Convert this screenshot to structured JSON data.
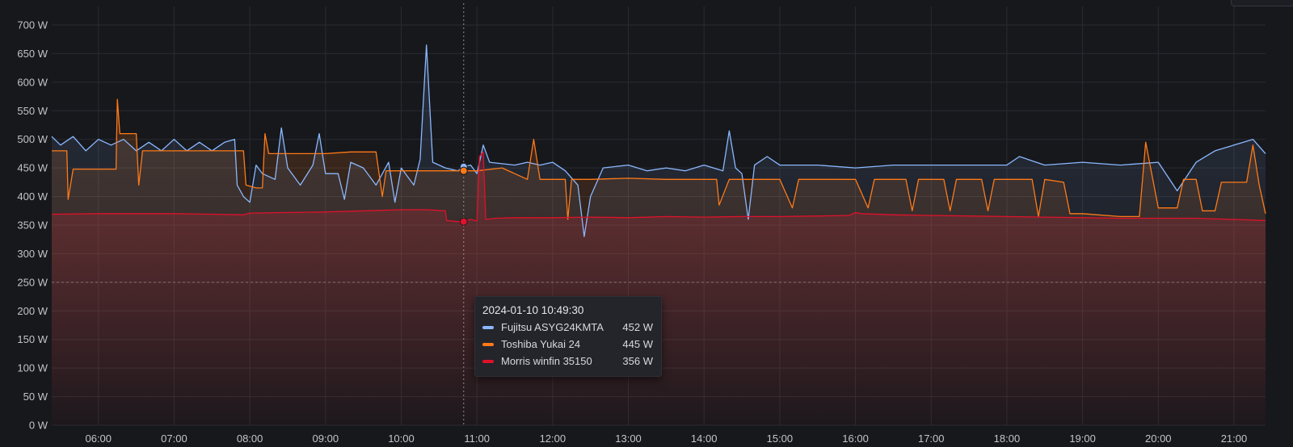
{
  "chart_data": {
    "type": "line",
    "y_unit": "W",
    "ylim": [
      0,
      700
    ],
    "y_ticks": [
      "0 W",
      "50 W",
      "100 W",
      "150 W",
      "200 W",
      "250 W",
      "300 W",
      "350 W",
      "400 W",
      "450 W",
      "500 W",
      "550 W",
      "600 W",
      "650 W",
      "700 W"
    ],
    "x_ticks": [
      "06:00",
      "07:00",
      "08:00",
      "09:00",
      "10:00",
      "11:00",
      "12:00",
      "13:00",
      "14:00",
      "15:00",
      "16:00",
      "17:00",
      "18:00",
      "19:00",
      "20:00",
      "21:00"
    ],
    "xlim": [
      "05:23",
      "21:25"
    ],
    "threshold": 250,
    "cursor_time": "10:49:30",
    "grid": true,
    "series": [
      {
        "name": "Fujitsu ASYG24KMTA",
        "color": "#8ab8ff",
        "style": "spiky",
        "points": [
          [
            "05:23",
            505
          ],
          [
            "05:30",
            490
          ],
          [
            "05:40",
            505
          ],
          [
            "05:50",
            480
          ],
          [
            "06:00",
            500
          ],
          [
            "06:10",
            490
          ],
          [
            "06:20",
            500
          ],
          [
            "06:30",
            480
          ],
          [
            "06:40",
            495
          ],
          [
            "06:50",
            480
          ],
          [
            "07:00",
            500
          ],
          [
            "07:10",
            480
          ],
          [
            "07:20",
            495
          ],
          [
            "07:30",
            480
          ],
          [
            "07:40",
            495
          ],
          [
            "07:48",
            500
          ],
          [
            "07:50",
            420
          ],
          [
            "07:55",
            400
          ],
          [
            "08:00",
            390
          ],
          [
            "08:05",
            455
          ],
          [
            "08:10",
            440
          ],
          [
            "08:20",
            430
          ],
          [
            "08:25",
            520
          ],
          [
            "08:30",
            450
          ],
          [
            "08:40",
            420
          ],
          [
            "08:50",
            455
          ],
          [
            "08:55",
            510
          ],
          [
            "09:00",
            440
          ],
          [
            "09:10",
            440
          ],
          [
            "09:15",
            395
          ],
          [
            "09:20",
            460
          ],
          [
            "09:30",
            450
          ],
          [
            "09:40",
            420
          ],
          [
            "09:50",
            460
          ],
          [
            "09:55",
            390
          ],
          [
            "10:00",
            450
          ],
          [
            "10:10",
            420
          ],
          [
            "10:15",
            465
          ],
          [
            "10:20",
            665
          ],
          [
            "10:25",
            460
          ],
          [
            "10:35",
            450
          ],
          [
            "10:45",
            445
          ],
          [
            "10:49",
            452
          ],
          [
            "10:55",
            455
          ],
          [
            "11:00",
            440
          ],
          [
            "11:05",
            490
          ],
          [
            "11:10",
            460
          ],
          [
            "11:30",
            455
          ],
          [
            "11:40",
            460
          ],
          [
            "11:50",
            455
          ],
          [
            "12:00",
            460
          ],
          [
            "12:10",
            445
          ],
          [
            "12:20",
            420
          ],
          [
            "12:25",
            330
          ],
          [
            "12:30",
            400
          ],
          [
            "12:40",
            450
          ],
          [
            "13:00",
            455
          ],
          [
            "13:15",
            445
          ],
          [
            "13:30",
            450
          ],
          [
            "13:45",
            445
          ],
          [
            "14:00",
            455
          ],
          [
            "14:15",
            445
          ],
          [
            "14:20",
            515
          ],
          [
            "14:25",
            450
          ],
          [
            "14:30",
            440
          ],
          [
            "14:35",
            360
          ],
          [
            "14:40",
            455
          ],
          [
            "14:50",
            470
          ],
          [
            "15:00",
            455
          ],
          [
            "15:30",
            455
          ],
          [
            "16:00",
            450
          ],
          [
            "16:30",
            455
          ],
          [
            "17:00",
            455
          ],
          [
            "17:30",
            455
          ],
          [
            "18:00",
            455
          ],
          [
            "18:10",
            470
          ],
          [
            "18:30",
            455
          ],
          [
            "19:00",
            460
          ],
          [
            "19:30",
            455
          ],
          [
            "20:00",
            460
          ],
          [
            "20:15",
            410
          ],
          [
            "20:30",
            460
          ],
          [
            "20:45",
            480
          ],
          [
            "21:00",
            490
          ],
          [
            "21:15",
            500
          ],
          [
            "21:25",
            475
          ]
        ]
      },
      {
        "name": "Toshiba Yukai 24",
        "color": "#ff7a18",
        "style": "step",
        "points": [
          [
            "05:23",
            480
          ],
          [
            "05:35",
            480
          ],
          [
            "05:36",
            395
          ],
          [
            "05:40",
            448
          ],
          [
            "05:55",
            448
          ],
          [
            "06:10",
            448
          ],
          [
            "06:14",
            448
          ],
          [
            "06:15",
            570
          ],
          [
            "06:17",
            510
          ],
          [
            "06:25",
            510
          ],
          [
            "06:30",
            510
          ],
          [
            "06:32",
            420
          ],
          [
            "06:35",
            480
          ],
          [
            "07:00",
            480
          ],
          [
            "07:30",
            480
          ],
          [
            "07:55",
            480
          ],
          [
            "07:57",
            420
          ],
          [
            "08:05",
            415
          ],
          [
            "08:10",
            415
          ],
          [
            "08:12",
            510
          ],
          [
            "08:15",
            475
          ],
          [
            "08:30",
            475
          ],
          [
            "09:00",
            475
          ],
          [
            "09:20",
            478
          ],
          [
            "09:40",
            478
          ],
          [
            "09:45",
            400
          ],
          [
            "09:48",
            445
          ],
          [
            "10:00",
            445
          ],
          [
            "10:20",
            445
          ],
          [
            "10:40",
            445
          ],
          [
            "10:49",
            445
          ],
          [
            "11:00",
            445
          ],
          [
            "11:20",
            450
          ],
          [
            "11:30",
            440
          ],
          [
            "11:40",
            430
          ],
          [
            "11:45",
            500
          ],
          [
            "11:50",
            430
          ],
          [
            "12:00",
            430
          ],
          [
            "12:10",
            430
          ],
          [
            "12:12",
            360
          ],
          [
            "12:15",
            430
          ],
          [
            "12:30",
            430
          ],
          [
            "13:00",
            432
          ],
          [
            "13:30",
            430
          ],
          [
            "14:00",
            430
          ],
          [
            "14:10",
            430
          ],
          [
            "14:12",
            385
          ],
          [
            "14:20",
            430
          ],
          [
            "14:40",
            430
          ],
          [
            "15:00",
            430
          ],
          [
            "15:10",
            380
          ],
          [
            "15:15",
            430
          ],
          [
            "15:30",
            430
          ],
          [
            "16:00",
            430
          ],
          [
            "16:10",
            380
          ],
          [
            "16:15",
            430
          ],
          [
            "16:40",
            430
          ],
          [
            "16:45",
            375
          ],
          [
            "16:50",
            430
          ],
          [
            "17:10",
            430
          ],
          [
            "17:15",
            375
          ],
          [
            "17:20",
            430
          ],
          [
            "17:40",
            430
          ],
          [
            "17:45",
            375
          ],
          [
            "17:50",
            430
          ],
          [
            "18:20",
            430
          ],
          [
            "18:25",
            365
          ],
          [
            "18:30",
            430
          ],
          [
            "18:45",
            425
          ],
          [
            "18:50",
            370
          ],
          [
            "19:00",
            370
          ],
          [
            "19:30",
            365
          ],
          [
            "19:45",
            365
          ],
          [
            "19:50",
            495
          ],
          [
            "20:00",
            380
          ],
          [
            "20:15",
            380
          ],
          [
            "20:20",
            430
          ],
          [
            "20:30",
            430
          ],
          [
            "20:35",
            375
          ],
          [
            "20:45",
            375
          ],
          [
            "20:50",
            425
          ],
          [
            "21:10",
            425
          ],
          [
            "21:15",
            490
          ],
          [
            "21:20",
            420
          ],
          [
            "21:25",
            370
          ]
        ]
      },
      {
        "name": "Morris winfin 35150",
        "color": "#e0112b",
        "style": "smooth",
        "points": [
          [
            "05:23",
            369
          ],
          [
            "06:00",
            370
          ],
          [
            "06:30",
            370
          ],
          [
            "07:00",
            370
          ],
          [
            "07:30",
            369
          ],
          [
            "07:55",
            368
          ],
          [
            "08:00",
            371
          ],
          [
            "08:30",
            372
          ],
          [
            "09:00",
            373
          ],
          [
            "09:30",
            375
          ],
          [
            "10:00",
            377
          ],
          [
            "10:20",
            377
          ],
          [
            "10:35",
            375
          ],
          [
            "10:36",
            358
          ],
          [
            "10:45",
            356
          ],
          [
            "10:49",
            356
          ],
          [
            "10:55",
            360
          ],
          [
            "11:00",
            357
          ],
          [
            "11:02",
            470
          ],
          [
            "11:05",
            478
          ],
          [
            "11:07",
            360
          ],
          [
            "11:15",
            362
          ],
          [
            "11:30",
            363
          ],
          [
            "12:00",
            363
          ],
          [
            "12:30",
            364
          ],
          [
            "13:00",
            363
          ],
          [
            "13:30",
            365
          ],
          [
            "14:00",
            364
          ],
          [
            "14:30",
            365
          ],
          [
            "15:00",
            365
          ],
          [
            "15:30",
            366
          ],
          [
            "15:55",
            367
          ],
          [
            "16:00",
            372
          ],
          [
            "16:05",
            370
          ],
          [
            "16:30",
            368
          ],
          [
            "17:00",
            367
          ],
          [
            "17:30",
            366
          ],
          [
            "18:00",
            365
          ],
          [
            "18:30",
            364
          ],
          [
            "19:00",
            363
          ],
          [
            "19:30",
            362
          ],
          [
            "20:00",
            362
          ],
          [
            "20:30",
            362
          ],
          [
            "21:00",
            360
          ],
          [
            "21:25",
            358
          ]
        ]
      }
    ]
  },
  "tooltip": {
    "time": "2024-01-10 10:49:30",
    "rows": [
      {
        "name": "Fujitsu ASYG24KMTA",
        "value": "452 W",
        "color": "#8ab8ff"
      },
      {
        "name": "Toshiba Yukai 24",
        "value": "445 W",
        "color": "#ff7a18"
      },
      {
        "name": "Morris winfin 35150",
        "value": "356 W",
        "color": "#e0112b"
      }
    ]
  }
}
